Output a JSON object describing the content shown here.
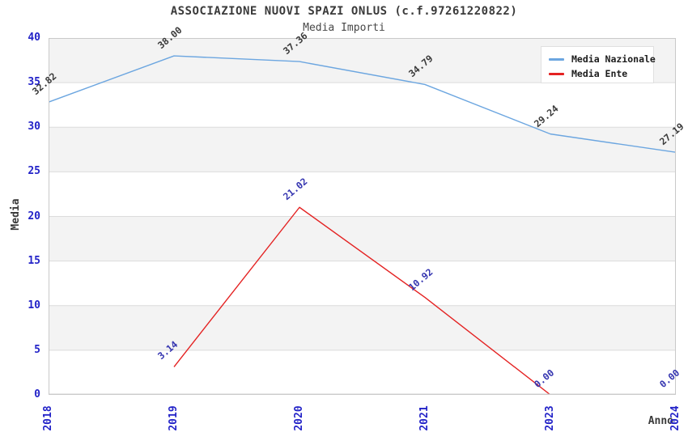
{
  "title": "ASSOCIAZIONE NUOVI SPAZI ONLUS (c.f.97261220822)",
  "subtitle": "Media Importi",
  "axes": {
    "y_label": "Media",
    "x_label": "Anno",
    "y_ticks": [
      0,
      5,
      10,
      15,
      20,
      25,
      30,
      35,
      40
    ],
    "x_ticks": [
      "2018",
      "2019",
      "2020",
      "2021",
      "2023",
      "2024"
    ]
  },
  "colors": {
    "tick_label": "#2323c8",
    "grid_line": "#dcdcdc",
    "plot_border": "#c9c9c9",
    "band_gray": "#f3f3f3",
    "band_white": "#ffffff",
    "dark_text": "#3a3a3a"
  },
  "chart_data": {
    "type": "line",
    "title": "ASSOCIAZIONE NUOVI SPAZI ONLUS (c.f.97261220822)",
    "subtitle": "Media Importi",
    "xlabel": "Anno",
    "ylabel": "Media",
    "categories": [
      "2018",
      "2019",
      "2020",
      "2021",
      "2023",
      "2024"
    ],
    "series": [
      {
        "name": "Media Nazionale",
        "color": "#6ca6e0",
        "label_color": "#3a3a3a",
        "values": [
          32.82,
          38.0,
          37.36,
          34.79,
          29.24,
          27.19
        ],
        "labels": [
          "32.82",
          "38.00",
          "37.36",
          "34.79",
          "29.24",
          "27.19"
        ]
      },
      {
        "name": "Media Ente",
        "color": "#e42222",
        "label_color": "#3535b0",
        "values": [
          null,
          3.14,
          21.02,
          10.92,
          0.0,
          0.0
        ],
        "labels": [
          null,
          "3.14",
          "21.02",
          "10.92",
          "0.00",
          "0.00"
        ]
      }
    ],
    "ylim": [
      0,
      40
    ],
    "ytick_step": 5,
    "grid": true,
    "background_bands": "alternating gray/white every 5 units",
    "legend_position": "top-right",
    "data_labels_rotation_deg": -40,
    "x_tick_rotation_deg": -90
  }
}
